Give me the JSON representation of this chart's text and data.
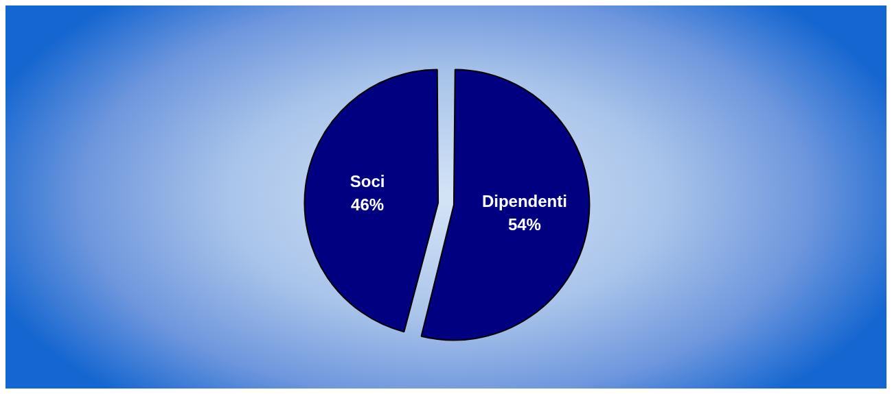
{
  "chart_data": {
    "type": "pie",
    "categories": [
      "Dipendenti",
      "Soci"
    ],
    "values": [
      54,
      46
    ],
    "colors": [
      "#000080",
      "#000080"
    ],
    "value_labels": [
      "54%",
      "46%"
    ],
    "legend": false
  }
}
